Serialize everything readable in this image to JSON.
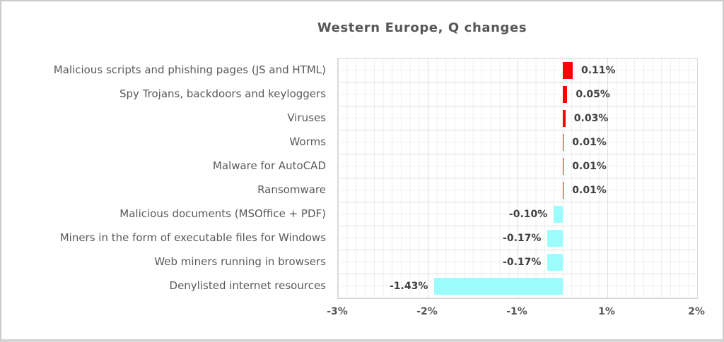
{
  "chart_data": {
    "type": "bar",
    "orientation": "horizontal",
    "title": "Western Europe, Q changes",
    "categories": [
      "Malicious scripts and phishing pages (JS and HTML)",
      "Spy Trojans, backdoors and keyloggers",
      "Viruses",
      "Worms",
      "Malware for AutoCAD",
      "Ransomware",
      "Malicious documents (MSOffice + PDF)",
      "Miners in the form of executable files for Windows",
      "Web miners running in browsers",
      "Denylisted internet resources"
    ],
    "values": [
      0.11,
      0.05,
      0.03,
      0.01,
      0.01,
      0.01,
      -0.1,
      -0.17,
      -0.17,
      -1.43
    ],
    "value_labels": [
      "0.11%",
      "0.05%",
      "0.03%",
      "0.01%",
      "0.01%",
      "0.01%",
      "-0.10%",
      "-0.17%",
      "-0.17%",
      "-1.43%"
    ],
    "x_tick_labels": [
      "-3%",
      "-2%",
      "-1%",
      "1%",
      "2%"
    ],
    "colors": {
      "positive_bar": "#fb0404",
      "negative_bar": "#9bfdfd",
      "text": "#595959",
      "value_text": "#404040",
      "grid_major": "#dedede",
      "grid_minor": "#efefef"
    },
    "grid": true,
    "legend": false
  }
}
